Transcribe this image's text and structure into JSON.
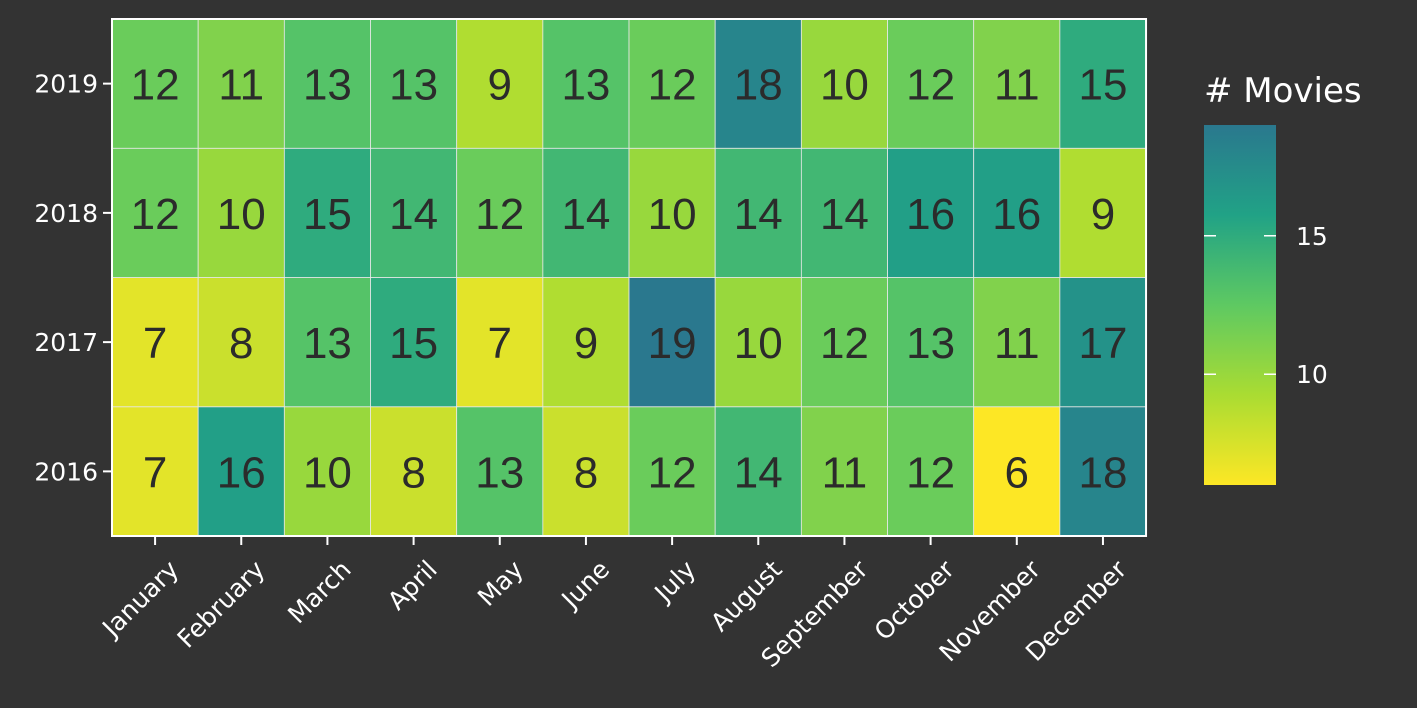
{
  "chart_data": {
    "type": "heatmap",
    "x_categories": [
      "January",
      "February",
      "March",
      "April",
      "May",
      "June",
      "July",
      "August",
      "September",
      "October",
      "November",
      "December"
    ],
    "y_categories": [
      "2016",
      "2017",
      "2018",
      "2019"
    ],
    "values": {
      "2016": [
        7,
        16,
        10,
        8,
        13,
        8,
        12,
        14,
        11,
        12,
        6,
        18
      ],
      "2017": [
        7,
        8,
        13,
        15,
        7,
        9,
        19,
        10,
        12,
        13,
        11,
        17
      ],
      "2018": [
        12,
        10,
        15,
        14,
        12,
        14,
        10,
        14,
        14,
        16,
        16,
        9
      ],
      "2019": [
        12,
        11,
        13,
        13,
        9,
        13,
        12,
        18,
        10,
        12,
        11,
        15
      ]
    },
    "legend": {
      "title": "# Movies",
      "ticks": [
        10,
        15
      ],
      "range": [
        6,
        19
      ],
      "position": "right"
    },
    "colors": {
      "background": "#333333",
      "low": "#fde725",
      "high": "#2a788e"
    }
  }
}
